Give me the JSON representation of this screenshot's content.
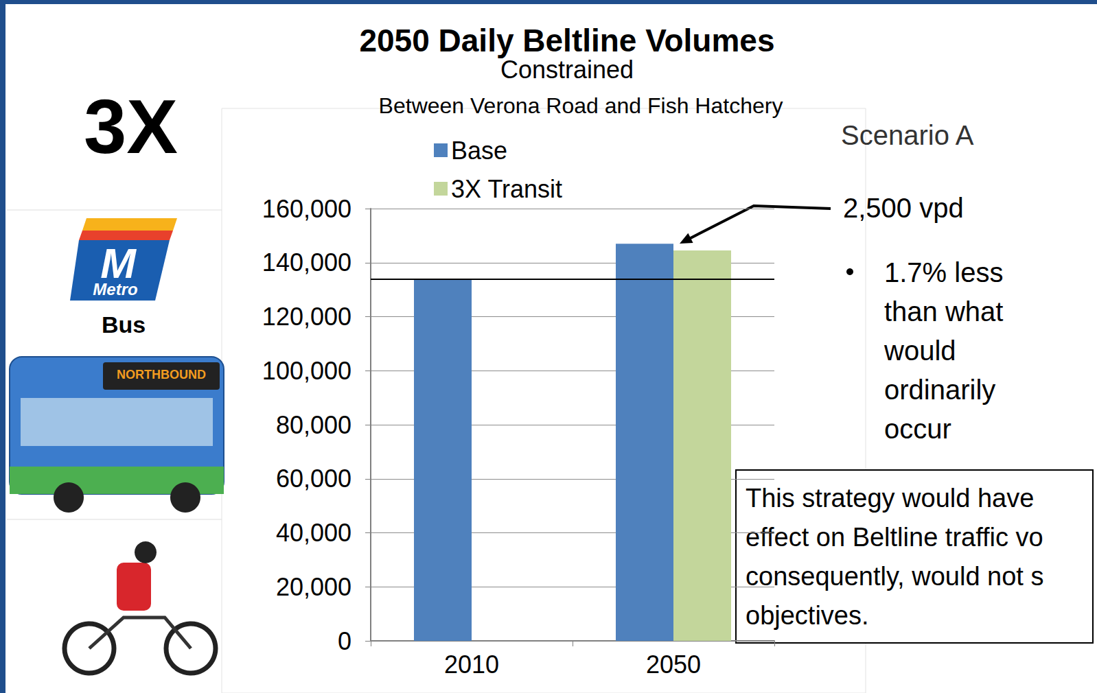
{
  "slide": {
    "label": "3X",
    "logo_letter": "M",
    "logo_text": "Metro",
    "caption": "Bus",
    "bus_sign": "NORTHBOUND"
  },
  "chart_data": {
    "type": "bar",
    "title": "2050 Daily Beltline Volumes",
    "subtitle": [
      "Constrained",
      "Between Verona Road and Fish Hatchery"
    ],
    "categories": [
      "2010",
      "2050"
    ],
    "series": [
      {
        "name": "Base",
        "color": "#4f81bd",
        "values": [
          134000,
          147000
        ]
      },
      {
        "name": "3X Transit",
        "color": "#c3d69b",
        "values": [
          null,
          144500
        ]
      }
    ],
    "ylim": [
      0,
      160000
    ],
    "yticks": [
      0,
      {
        "value": 20000,
        "label": "20,000"
      },
      {
        "value": 40000,
        "label": "40,000"
      },
      {
        "value": 60000,
        "label": "60,000"
      },
      {
        "value": 80000,
        "label": "80,000"
      },
      {
        "value": 100000,
        "label": "100,000"
      },
      {
        "value": 120000,
        "label": "120,000"
      },
      {
        "value": 140000,
        "label": "140,000"
      },
      {
        "value": 160000,
        "label": "160,000"
      }
    ],
    "grid": true,
    "legend": "top",
    "reference_line": 134000,
    "annotations": {
      "scenario": "Scenario A",
      "difference": "2,500 vpd",
      "bullet": "1.7% less than what would ordinarily occur",
      "box": [
        "This strategy would have",
        "effect on Beltline traffic vo",
        "consequently, would not s",
        "objectives."
      ]
    }
  }
}
